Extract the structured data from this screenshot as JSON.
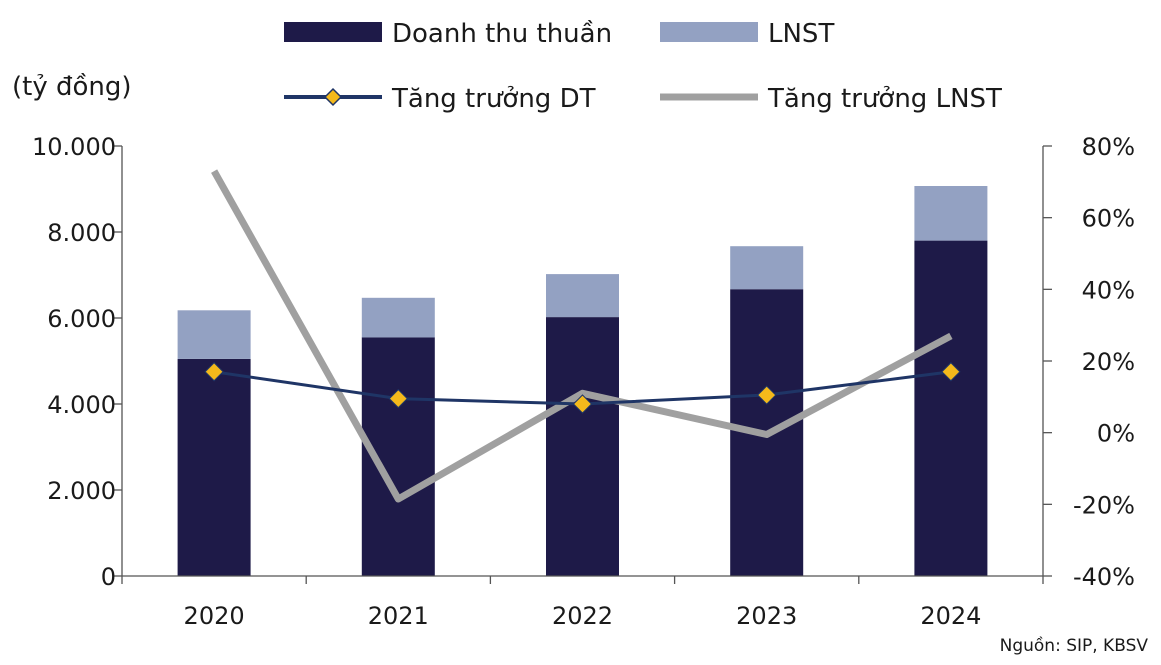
{
  "chart_data": {
    "type": "bar",
    "categories": [
      "2020",
      "2021",
      "2022",
      "2023",
      "2024"
    ],
    "ylabel": "(tỷ đồng)",
    "ylim": [
      0,
      10000
    ],
    "yticks": [
      "0",
      "2.000",
      "4.000",
      "6.000",
      "8.000",
      "10.000"
    ],
    "y2lim": [
      -40,
      80
    ],
    "y2ticks": [
      "-40%",
      "-20%",
      "0%",
      "20%",
      "40%",
      "60%",
      "80%"
    ],
    "stacked": true,
    "series": [
      {
        "name": "Doanh thu thuần",
        "kind": "bar",
        "axis": "left",
        "color": "#1e1a48",
        "values": [
          5050,
          5550,
          6020,
          6670,
          7800
        ]
      },
      {
        "name": "LNST",
        "kind": "bar",
        "axis": "left",
        "color": "#93a1c2",
        "values": [
          1130,
          920,
          1000,
          1000,
          1270
        ]
      },
      {
        "name": "Tăng trưởng DT",
        "kind": "line",
        "axis": "right",
        "color": "#1f3566",
        "marker": "diamond",
        "marker_color": "#f4b91b",
        "values": [
          17,
          9.5,
          8,
          10.5,
          17
        ]
      },
      {
        "name": "Tăng trưởng LNST",
        "kind": "line",
        "axis": "right",
        "color": "#a0a0a0",
        "values": [
          73,
          -18.5,
          11,
          -0.5,
          27
        ]
      }
    ],
    "legend": "top",
    "grid": false
  },
  "source": "Nguồn: SIP, KBSV"
}
